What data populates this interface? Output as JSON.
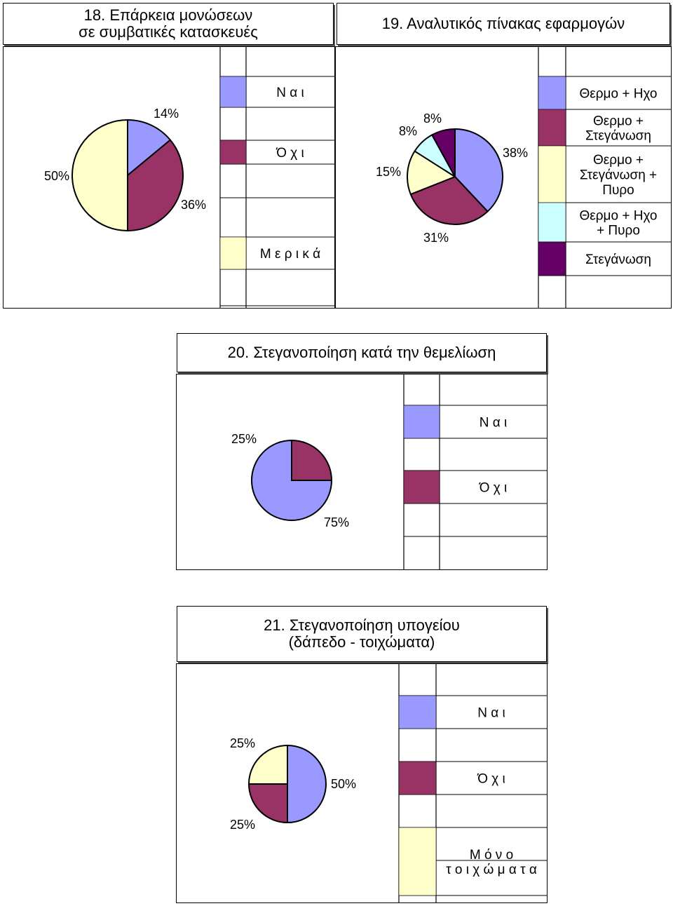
{
  "charts": [
    {
      "title": "18.  Επάρκεια μονώσεων\nσε συμβατικές κατασκευές",
      "type": "pie",
      "slices": [
        {
          "label": "14%",
          "value": 14,
          "color": "#9999FF"
        },
        {
          "label": "36%",
          "value": 36,
          "color": "#993366"
        },
        {
          "label": "50%",
          "value": 50,
          "color": "#FFFFCC"
        }
      ],
      "legend": [
        {
          "text": "Ν α ι",
          "color": "#9999FF"
        },
        {
          "text": "Ό χ ι",
          "color": "#993366"
        },
        {
          "text": "Μ ε ρ ι κ ά",
          "color": "#FFFFCC"
        }
      ]
    },
    {
      "title": "19. Αναλυτικός πίνακας εφαρμογών",
      "type": "pie",
      "slices": [
        {
          "label": "38%",
          "value": 38,
          "color": "#9999FF"
        },
        {
          "label": "31%",
          "value": 31,
          "color": "#993366"
        },
        {
          "label": "15%",
          "value": 15,
          "color": "#FFFFCC"
        },
        {
          "label": "8%",
          "value": 8,
          "color": "#CCFFFF"
        },
        {
          "label": "8%",
          "value": 8,
          "color": "#660066"
        }
      ],
      "legend": [
        {
          "text": "Θερμο + Ηχο",
          "color": "#9999FF"
        },
        {
          "text": "Θερμο +\nΣτεγάνωση",
          "color": "#993366"
        },
        {
          "text": "Θερμο +\nΣτεγάνωση +\nΠυρο",
          "color": "#FFFFCC"
        },
        {
          "text": "Θερμο + Ηχο\n+ Πυρο",
          "color": "#CCFFFF"
        },
        {
          "text": "Στεγάνωση",
          "color": "#660066"
        }
      ]
    },
    {
      "title": "20. Στεγανοποίηση κατά την θεμελίωση",
      "type": "pie",
      "slices": [
        {
          "label": "75%",
          "value": 75,
          "color": "#9999FF"
        },
        {
          "label": "25%",
          "value": 25,
          "color": "#993366"
        }
      ],
      "legend": [
        {
          "text": "Ν α ι",
          "color": "#9999FF"
        },
        {
          "text": "Ό χ ι",
          "color": "#993366"
        }
      ]
    },
    {
      "title": "21. Στεγανοποίηση  υπογείου\n(δάπεδο - τοιχώματα)",
      "type": "pie",
      "slices": [
        {
          "label": "50%",
          "value": 50,
          "color": "#9999FF"
        },
        {
          "label": "25%",
          "value": 25,
          "color": "#993366"
        },
        {
          "label": "25%",
          "value": 25,
          "color": "#FFFFCC"
        }
      ],
      "legend": [
        {
          "text": "Ν α ι",
          "color": "#9999FF"
        },
        {
          "text": "Ό χ ι",
          "color": "#993366"
        },
        {
          "text": "Μ ό ν ο\nτ ο ι χ ώ μ α τ α",
          "color": "#FFFFCC"
        }
      ]
    }
  ]
}
